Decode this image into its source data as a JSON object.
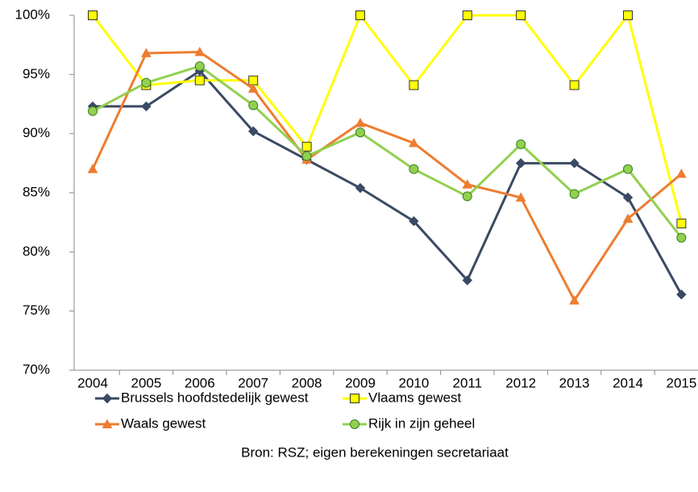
{
  "chart_data": {
    "type": "line",
    "categories": [
      "2004",
      "2005",
      "2006",
      "2007",
      "2008",
      "2009",
      "2010",
      "2011",
      "2012",
      "2013",
      "2014",
      "2015"
    ],
    "series": [
      {
        "name": "Brussels hoofdstedelijk gewest",
        "color": "#3b4a63",
        "marker": "diamond",
        "values": [
          92.3,
          92.3,
          95.3,
          90.2,
          87.8,
          85.4,
          82.6,
          77.6,
          87.5,
          87.5,
          84.6,
          76.4
        ]
      },
      {
        "name": "Vlaams gewest",
        "color": "#ffff00",
        "marker": "square",
        "values": [
          100,
          94.1,
          94.5,
          94.5,
          88.9,
          100,
          94.1,
          100,
          100,
          94.1,
          100,
          82.4
        ]
      },
      {
        "name": "Waals gewest",
        "color": "#ed7d31",
        "marker": "triangle",
        "values": [
          87.0,
          96.8,
          96.9,
          93.8,
          87.8,
          90.9,
          89.2,
          85.7,
          84.6,
          75.9,
          82.8,
          86.6
        ]
      },
      {
        "name": "Rijk in zijn geheel",
        "color": "#92d050",
        "marker": "circle",
        "values": [
          91.9,
          94.3,
          95.7,
          92.4,
          88.1,
          90.1,
          87.0,
          84.7,
          89.1,
          84.9,
          87.0,
          81.2
        ]
      }
    ],
    "ylim": [
      70,
      100
    ],
    "yticks": [
      {
        "value": 70,
        "label": "70%"
      },
      {
        "value": 75,
        "label": "75%"
      },
      {
        "value": 80,
        "label": "80%"
      },
      {
        "value": 85,
        "label": "85%"
      },
      {
        "value": 90,
        "label": "90%"
      },
      {
        "value": 95,
        "label": "95%"
      },
      {
        "value": 100,
        "label": "100%"
      }
    ],
    "grid": false,
    "source": "Bron: RSZ; eigen berekeningen secretariaat"
  }
}
